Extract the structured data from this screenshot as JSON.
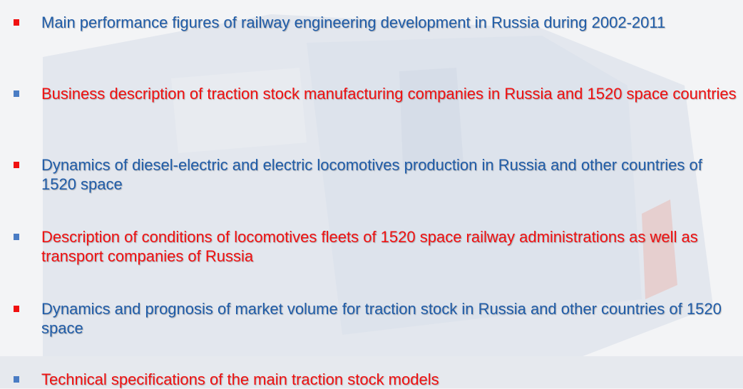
{
  "items": [
    "Main performance figures of railway engineering development in Russia during 2002-2011",
    "Business description of traction stock manufacturing companies in Russia and 1520 space countries",
    "Dynamics of diesel-electric and electric locomotives production in Russia and other countries of 1520 space",
    "Description of conditions of locomotives fleets of 1520 space railway administrations as well as transport companies of Russia",
    "Dynamics and prognosis of market volume for traction stock in Russia and other countries of 1520 space",
    "Technical specifications of the main traction stock models"
  ]
}
